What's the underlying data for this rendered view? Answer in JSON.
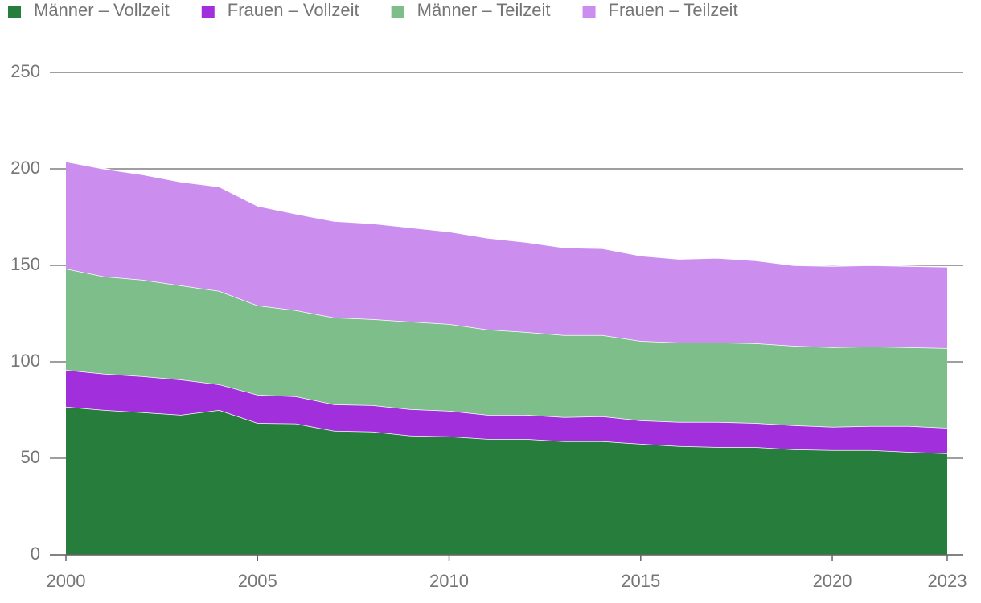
{
  "chart_data": {
    "type": "stacked_area",
    "x": [
      2000,
      2001,
      2002,
      2003,
      2004,
      2005,
      2006,
      2007,
      2008,
      2009,
      2010,
      2011,
      2012,
      2013,
      2014,
      2015,
      2016,
      2017,
      2018,
      2019,
      2020,
      2021,
      2022,
      2023
    ],
    "series": [
      {
        "name": "Männer – Vollzeit",
        "color": "#277d3c",
        "values": [
          76.7,
          75,
          73.8,
          72.5,
          75,
          68.3,
          68,
          64.2,
          63.8,
          61.7,
          61.3,
          60,
          60,
          58.8,
          58.8,
          57.5,
          56.3,
          55.8,
          55.8,
          54.6,
          54.2,
          54.2,
          53.3,
          52.5
        ]
      },
      {
        "name": "Frauen – Vollzeit",
        "color": "#a22fdc",
        "values": [
          19.1,
          18.8,
          18.7,
          18.3,
          13.3,
          14.6,
          14.1,
          13.7,
          13.7,
          13.7,
          13.3,
          12.5,
          12.5,
          12.5,
          12.9,
          12.1,
          12.5,
          13,
          12.5,
          12.5,
          12.1,
          12.5,
          13.4,
          13.3
        ]
      },
      {
        "name": "Männer – Teilzeit",
        "color": "#7dbe8a",
        "values": [
          52.5,
          50.4,
          50,
          48.8,
          48.4,
          46.3,
          44.6,
          45,
          44.6,
          45.4,
          45,
          44.2,
          42.9,
          42.5,
          42.1,
          41.2,
          41.2,
          41.2,
          41.3,
          41.2,
          41.2,
          41.2,
          40.8,
          41.3
        ]
      },
      {
        "name": "Frauen – Teilzeit",
        "color": "#cb8eee",
        "values": [
          55.5,
          55.8,
          54.6,
          53.7,
          54.1,
          51.6,
          50,
          50,
          49.6,
          48.8,
          47.9,
          47.5,
          46.7,
          45.4,
          45,
          44.2,
          43.3,
          43.8,
          42.9,
          41.7,
          42.1,
          42.1,
          42.1,
          42.1
        ]
      }
    ],
    "xlim": [
      2000,
      2023
    ],
    "xticks": [
      2000,
      2005,
      2010,
      2015,
      2020,
      2023
    ],
    "ylim": [
      0,
      250
    ],
    "yticks": [
      0,
      50,
      100,
      150,
      200,
      250
    ],
    "grid": true,
    "legend": "top"
  }
}
